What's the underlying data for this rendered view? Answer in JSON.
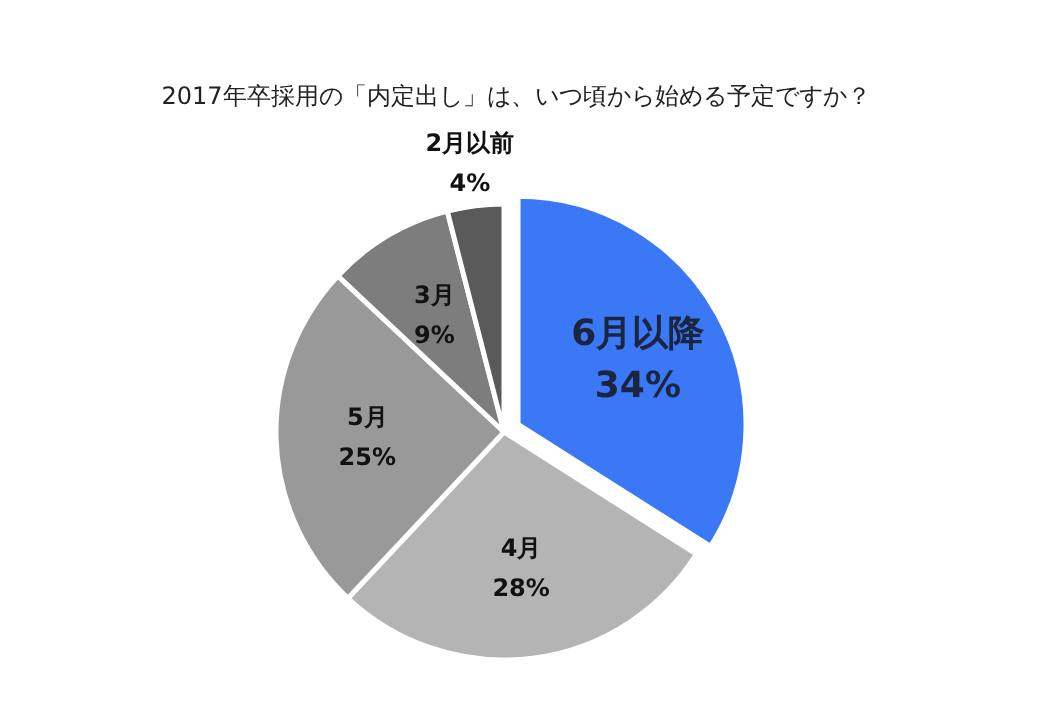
{
  "chart_data": {
    "type": "pie",
    "title": "2017年卒採用の「内定出し」は、いつ頃から始める予定ですか？",
    "categories": [
      "6月以降",
      "4月",
      "5月",
      "3月",
      "2月以前"
    ],
    "values": [
      34,
      28,
      25,
      9,
      4
    ],
    "value_labels": [
      "34%",
      "28%",
      "25%",
      "9%",
      "4%"
    ],
    "colors": [
      "#3b78f5",
      "#b4b4b4",
      "#999999",
      "#7d7d7d",
      "#5a5a5a"
    ]
  }
}
